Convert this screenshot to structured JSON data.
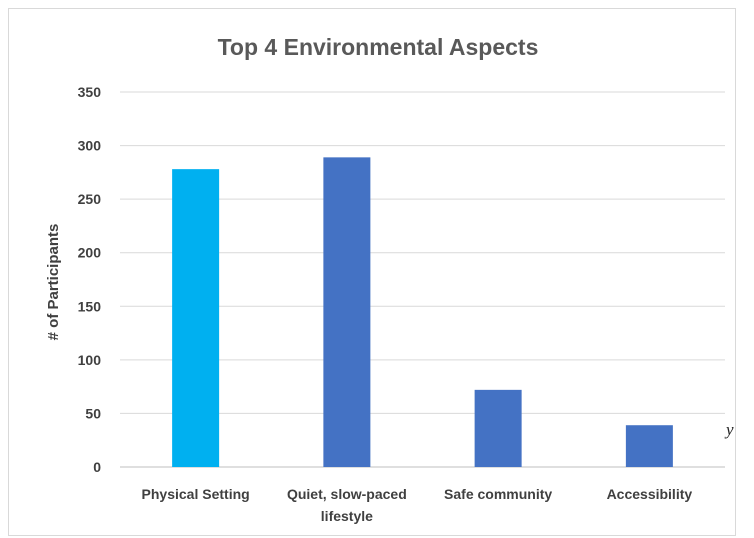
{
  "chart_data": {
    "type": "bar",
    "title": "Top 4 Environmental Aspects",
    "xlabel": "",
    "ylabel": "# of Participants",
    "categories": [
      [
        "Physical Setting"
      ],
      [
        "Quiet, slow-paced",
        "lifestyle"
      ],
      [
        "Safe community"
      ],
      [
        "Accessibility"
      ]
    ],
    "values": [
      278,
      289,
      72,
      39
    ],
    "bar_colors": [
      "#00b0f0",
      "#4472c4",
      "#4472c4",
      "#4472c4"
    ],
    "ylim": [
      0,
      350
    ],
    "yticks": [
      0,
      50,
      100,
      150,
      200,
      250,
      300,
      350
    ],
    "grid": true,
    "legend": "none"
  },
  "stray_mark": "y"
}
